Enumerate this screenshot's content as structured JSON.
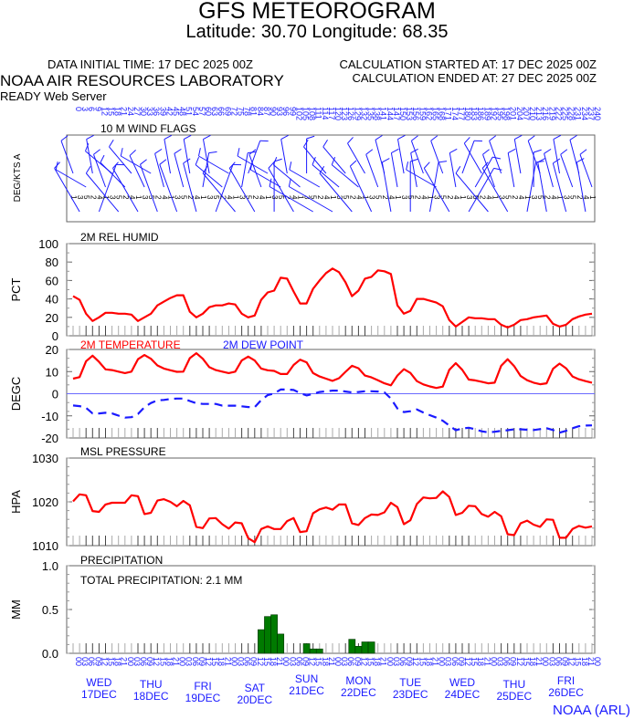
{
  "header": {
    "title": "GFS METEOROGRAM",
    "subtitle": "Latitude: 30.70 Longitude:  68.35",
    "init_time": "DATA INITIAL TIME: 17 DEC 2025 00Z",
    "calc_started": "CALCULATION STARTED AT: 17 DEC 2025 00Z",
    "calc_ended": "CALCULATION ENDED AT: 27 DEC 2025 00Z",
    "lab": "NOAA AIR RESOURCES LABORATORY",
    "server": "READY Web Server"
  },
  "footer": {
    "credit": "NOAA (ARL)"
  },
  "colors": {
    "red": "#ff0000",
    "blue": "#1a1aff",
    "green": "#007a00",
    "axis": "#555555"
  },
  "chart_data": [
    {
      "type": "wind",
      "title": "10 M  WIND FLAGS",
      "ylabel": "DEG/KTS  A",
      "x_hours_start": 0,
      "x_hours_step": 3,
      "wind_dir_deg": [
        340,
        330,
        300,
        350,
        20,
        340,
        310,
        320,
        315,
        320,
        330,
        335,
        300,
        340,
        345,
        350,
        340,
        345,
        350,
        345,
        10,
        350,
        20,
        310,
        300,
        320,
        10,
        20,
        330,
        340,
        300,
        0,
        300,
        350,
        330,
        310,
        0,
        300,
        300,
        320,
        300,
        310,
        320,
        320,
        310,
        330,
        335,
        340,
        345,
        350,
        350,
        350,
        0,
        350,
        340,
        10,
        300,
        340,
        330,
        350,
        20,
        30,
        30,
        330,
        320,
        340,
        340,
        330,
        350,
        350,
        10,
        0,
        340,
        350,
        345,
        350,
        345,
        340,
        345,
        350,
        340
      ]
    },
    {
      "type": "line",
      "title": "2M REL HUMID",
      "ylabel": "PCT",
      "ylim": [
        0,
        100
      ],
      "yticks": [
        "100",
        "80",
        "60",
        "40",
        "20",
        "0"
      ],
      "series": [
        {
          "name": "2M REL HUMID",
          "color": "#ff0000",
          "values": [
            43,
            39,
            24,
            16,
            20,
            25,
            25,
            24,
            24,
            23,
            16,
            20,
            24,
            33,
            37,
            41,
            44,
            44,
            26,
            20,
            24,
            31,
            33,
            33,
            35,
            34,
            24,
            20,
            22,
            39,
            47,
            49,
            63,
            62,
            48,
            35,
            35,
            51,
            60,
            68,
            73,
            69,
            58,
            43,
            49,
            62,
            64,
            71,
            70,
            67,
            33,
            24,
            27,
            40,
            40,
            38,
            36,
            32,
            17,
            10,
            15,
            20,
            19,
            19,
            18,
            18,
            12,
            9,
            12,
            17,
            18,
            20,
            21,
            22,
            13,
            10,
            12,
            18,
            21,
            23,
            24
          ]
        }
      ]
    },
    {
      "type": "line",
      "title": "",
      "ylabel": "DEGC",
      "ylim": [
        -20,
        20
      ],
      "yticks": [
        "20",
        "10",
        "0",
        "-10",
        "-20"
      ],
      "legend": [
        "2M TEMPERATURE",
        "2M   DEW POINT"
      ],
      "series": [
        {
          "name": "2M TEMPERATURE",
          "color": "#ff0000",
          "style": "solid",
          "values": [
            6.8,
            7.5,
            14.7,
            17.2,
            14.4,
            11,
            10.7,
            10,
            9.3,
            10,
            15.6,
            17.5,
            15.8,
            12.8,
            11.4,
            10.6,
            9.9,
            10,
            16.1,
            18.3,
            15.8,
            12,
            10.7,
            10,
            9.3,
            10,
            15,
            16.8,
            15,
            11.4,
            10.6,
            10.3,
            8.9,
            8.9,
            13,
            15.4,
            14.2,
            9.3,
            7.8,
            6.8,
            5.8,
            7,
            9.9,
            12.6,
            11.5,
            8.2,
            7.4,
            6.1,
            4.7,
            3.8,
            8.2,
            11.1,
            9.4,
            5.7,
            4.2,
            3.3,
            2.6,
            3.2,
            10.8,
            13.8,
            10.8,
            6.4,
            6,
            5.4,
            4.7,
            5,
            12.6,
            15.6,
            12.5,
            8,
            6.1,
            5,
            4.3,
            4.7,
            11.3,
            13.6,
            11.5,
            7.8,
            6.5,
            5.7,
            5
          ]
        },
        {
          "name": "2M   DEW POINT",
          "color": "#1a1aff",
          "style": "dashed",
          "values": [
            -5.3,
            -5.6,
            -6.4,
            -8.9,
            -8.9,
            -8.6,
            -8.9,
            -9.9,
            -10.8,
            -10.6,
            -9.2,
            -6.1,
            -4.2,
            -3,
            -2.8,
            -2.4,
            -2.2,
            -2.2,
            -3.3,
            -4.3,
            -4.6,
            -4.6,
            -4.6,
            -5.4,
            -5.4,
            -5.4,
            -5.7,
            -6,
            -6.1,
            -2.9,
            -0.6,
            0.1,
            1.9,
            1.9,
            1.7,
            0.3,
            -0.8,
            -0.1,
            0.8,
            1.1,
            1.4,
            1.4,
            1,
            0.6,
            0.8,
            1.1,
            1.1,
            1,
            0.6,
            -2.2,
            -6.7,
            -8.3,
            -7.9,
            -7.1,
            -8.5,
            -9.7,
            -10.8,
            -12.2,
            -14.4,
            -16.5,
            -15.7,
            -15.4,
            -16.1,
            -17,
            -17.5,
            -17.2,
            -16.8,
            -16.5,
            -16.1,
            -16.1,
            -16.3,
            -16.4,
            -16,
            -15.6,
            -16.4,
            -17.6,
            -16.8,
            -15.6,
            -14.7,
            -14.4,
            -14.3
          ]
        }
      ]
    },
    {
      "type": "line",
      "title": "MSL PRESSURE",
      "ylabel": "HPA",
      "ylim": [
        1010,
        1030
      ],
      "yticks": [
        "1030",
        "1020",
        "1010"
      ],
      "series": [
        {
          "name": "MSL PRESSURE",
          "color": "#ff0000",
          "values": [
            1020.1,
            1021.7,
            1021.5,
            1017.9,
            1017.7,
            1019.4,
            1019.8,
            1019.8,
            1019.8,
            1021.5,
            1021.3,
            1017.2,
            1017.5,
            1020.3,
            1020.6,
            1020,
            1019,
            1020.2,
            1019.2,
            1014.3,
            1014,
            1016.2,
            1016.3,
            1014.9,
            1013.9,
            1015.3,
            1015.1,
            1011.7,
            1010.8,
            1013.8,
            1014.4,
            1013.8,
            1013.8,
            1015.6,
            1016.3,
            1013.1,
            1013.3,
            1017.4,
            1018.3,
            1018.7,
            1018.2,
            1019.4,
            1019.4,
            1015.1,
            1014.7,
            1016.3,
            1017.1,
            1017,
            1017.6,
            1019.8,
            1018.8,
            1014.9,
            1015.8,
            1019.5,
            1021,
            1020.8,
            1020.9,
            1022.4,
            1021.1,
            1017,
            1017.5,
            1019.1,
            1019,
            1017.2,
            1016.6,
            1017.7,
            1016.7,
            1012.6,
            1012.4,
            1015.1,
            1015.7,
            1014.8,
            1014.3,
            1016,
            1015.9,
            1011.8,
            1011.8,
            1013.8,
            1014.5,
            1014.1,
            1014.4
          ]
        }
      ]
    },
    {
      "type": "bar",
      "title": "PRECIPITATION",
      "ylabel": "MM",
      "ylim": [
        0,
        1
      ],
      "yticks": [
        "1.0",
        "0.5",
        "0.0"
      ],
      "total_label": "TOTAL PRECIPITATION:   2.1 MM",
      "color": "#007a00",
      "bars": [
        {
          "hour": 87,
          "mm": 0.27
        },
        {
          "hour": 90,
          "mm": 0.42
        },
        {
          "hour": 93,
          "mm": 0.44
        },
        {
          "hour": 96,
          "mm": 0.22
        },
        {
          "hour": 108,
          "mm": 0.11
        },
        {
          "hour": 111,
          "mm": 0.05
        },
        {
          "hour": 114,
          "mm": 0.05
        },
        {
          "hour": 129,
          "mm": 0.16
        },
        {
          "hour": 132,
          "mm": 0.08
        },
        {
          "hour": 135,
          "mm": 0.13
        },
        {
          "hour": 138,
          "mm": 0.13
        }
      ]
    }
  ],
  "x_axis": {
    "utc_hours": [
      "00",
      "03",
      "06",
      "09",
      "12",
      "15",
      "18",
      "21"
    ],
    "days": [
      {
        "dow": "WED",
        "date": "17DEC"
      },
      {
        "dow": "THU",
        "date": "18DEC"
      },
      {
        "dow": "FRI",
        "date": "19DEC"
      },
      {
        "dow": "SAT",
        "date": "20DEC"
      },
      {
        "dow": "SUN",
        "date": "21DEC"
      },
      {
        "dow": "MON",
        "date": "22DEC"
      },
      {
        "dow": "TUE",
        "date": "23DEC"
      },
      {
        "dow": "WED",
        "date": "24DEC"
      },
      {
        "dow": "THU",
        "date": "25DEC"
      },
      {
        "dow": "FRI",
        "date": "26DEC"
      }
    ]
  }
}
